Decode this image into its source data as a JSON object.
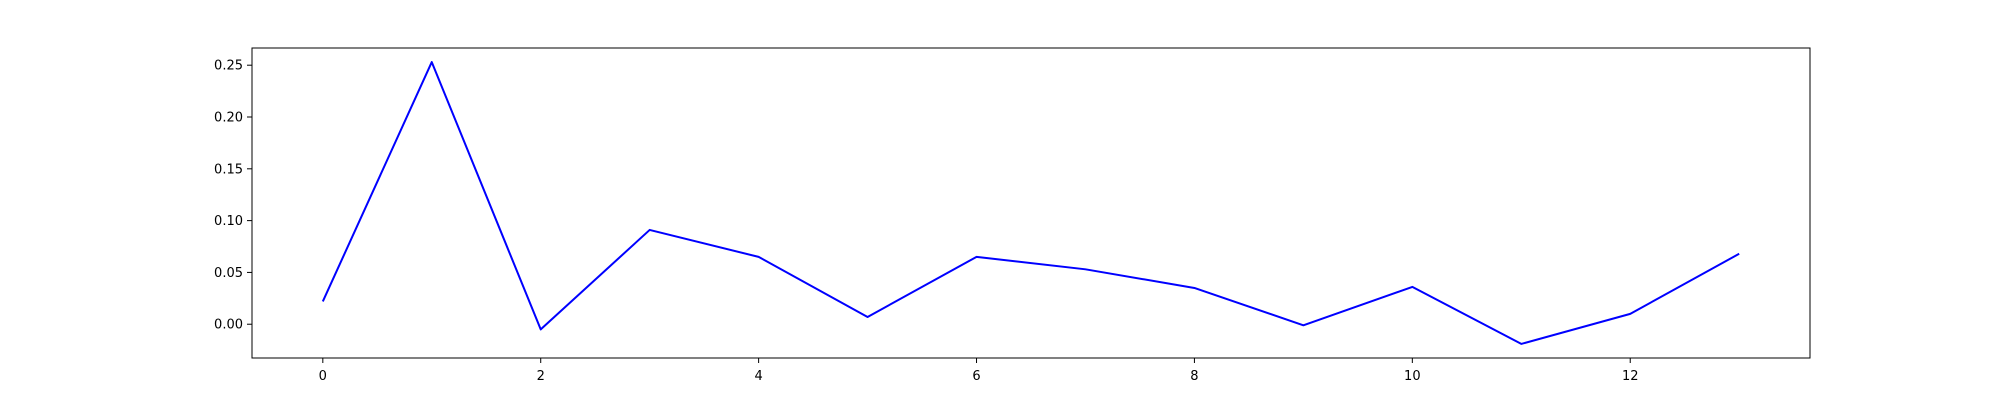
{
  "chart_data": {
    "type": "line",
    "title": "",
    "xlabel": "",
    "ylabel": "",
    "x": [
      0,
      1,
      2,
      3,
      4,
      5,
      6,
      7,
      8,
      9,
      10,
      11,
      12,
      13
    ],
    "series": [
      {
        "color": "#0000ff",
        "values": [
          0.022,
          0.253,
          -0.005,
          0.091,
          0.065,
          0.007,
          0.065,
          0.053,
          0.035,
          -0.001,
          0.036,
          -0.019,
          0.01,
          0.068
        ]
      }
    ],
    "xlim": [
      -0.65,
      13.65
    ],
    "ylim": [
      -0.0326,
      0.2666
    ],
    "xticks": [
      0,
      2,
      4,
      6,
      8,
      10,
      12
    ],
    "xtick_labels": [
      "0",
      "2",
      "4",
      "6",
      "8",
      "10",
      "12"
    ],
    "yticks": [
      0.0,
      0.05,
      0.1,
      0.15,
      0.2,
      0.25
    ],
    "ytick_labels": [
      "0.00",
      "0.05",
      "0.10",
      "0.15",
      "0.20",
      "0.25"
    ],
    "grid": false,
    "legend": "none"
  }
}
